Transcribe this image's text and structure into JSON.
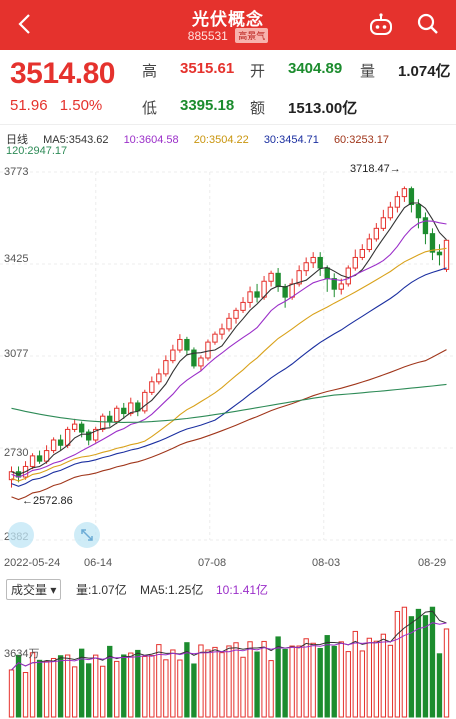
{
  "header": {
    "title": "光伏概念",
    "code": "885531",
    "badge": "高景气",
    "bg_color": "#e5322d"
  },
  "quote": {
    "price": "3514.80",
    "change": "51.96",
    "change_pct": "1.50%",
    "high_label": "高",
    "high": "3515.61",
    "open_label": "开",
    "open": "3404.89",
    "vol_label": "量",
    "vol": "1.074亿",
    "low_label": "低",
    "low": "3395.18",
    "amt_label": "额",
    "amount": "1513.00亿"
  },
  "ma": {
    "period_label": "日线",
    "ma5": "MA5:3543.62",
    "ma10": "10:3604.58",
    "ma20": "20:3504.22",
    "ma30": "30:3454.71",
    "ma60": "60:3253.17",
    "ma120": "120:2947.17",
    "colors": {
      "ma5": "#333333",
      "ma10": "#9b2fc9",
      "ma20": "#d9a21b",
      "ma30": "#1b2fa0",
      "ma60": "#a0361b",
      "ma120": "#2e8b57"
    }
  },
  "axis": {
    "y1": "3773",
    "y2": "3425",
    "y3": "3077",
    "y4": "2730",
    "y5": "2382",
    "max_annot": "3718.47→",
    "min_annot": "←2572.86"
  },
  "dates": {
    "d1": "2022-05-24",
    "d2": "06-14",
    "d3": "07-08",
    "d4": "08-03",
    "d5": "08-29"
  },
  "volume": {
    "selector": "成交量",
    "qty": "量:1.07亿",
    "ma5": "MA5:1.25亿",
    "ma10": "10:1.41亿",
    "axis_low": "3634万"
  },
  "chart_data": {
    "type": "candlestick",
    "ylim": [
      2382,
      3773
    ],
    "max_high": 3718.47,
    "min_low": 2572.86,
    "last_close": 3514.8,
    "candles": [
      [
        2610,
        2640,
        2580,
        2660
      ],
      [
        2640,
        2620,
        2600,
        2660
      ],
      [
        2620,
        2660,
        2610,
        2680
      ],
      [
        2660,
        2700,
        2650,
        2710
      ],
      [
        2700,
        2680,
        2670,
        2720
      ],
      [
        2680,
        2720,
        2670,
        2740
      ],
      [
        2720,
        2760,
        2710,
        2770
      ],
      [
        2760,
        2740,
        2720,
        2780
      ],
      [
        2740,
        2800,
        2730,
        2810
      ],
      [
        2800,
        2820,
        2790,
        2840
      ],
      [
        2820,
        2790,
        2770,
        2830
      ],
      [
        2790,
        2760,
        2740,
        2800
      ],
      [
        2760,
        2800,
        2750,
        2810
      ],
      [
        2800,
        2850,
        2790,
        2860
      ],
      [
        2850,
        2830,
        2810,
        2870
      ],
      [
        2830,
        2880,
        2820,
        2890
      ],
      [
        2880,
        2860,
        2840,
        2900
      ],
      [
        2860,
        2900,
        2850,
        2920
      ],
      [
        2900,
        2870,
        2850,
        2910
      ],
      [
        2870,
        2940,
        2860,
        2950
      ],
      [
        2940,
        2980,
        2930,
        3000
      ],
      [
        2980,
        3010,
        2970,
        3030
      ],
      [
        3010,
        3060,
        3000,
        3080
      ],
      [
        3060,
        3100,
        3050,
        3120
      ],
      [
        3100,
        3140,
        3090,
        3160
      ],
      [
        3140,
        3100,
        3080,
        3150
      ],
      [
        3100,
        3040,
        3030,
        3110
      ],
      [
        3040,
        3070,
        3020,
        3080
      ],
      [
        3070,
        3130,
        3060,
        3140
      ],
      [
        3130,
        3160,
        3120,
        3170
      ],
      [
        3160,
        3180,
        3140,
        3200
      ],
      [
        3180,
        3220,
        3170,
        3240
      ],
      [
        3220,
        3250,
        3200,
        3260
      ],
      [
        3250,
        3280,
        3240,
        3300
      ],
      [
        3280,
        3320,
        3260,
        3340
      ],
      [
        3320,
        3300,
        3280,
        3350
      ],
      [
        3300,
        3360,
        3290,
        3380
      ],
      [
        3360,
        3390,
        3340,
        3400
      ],
      [
        3390,
        3340,
        3320,
        3410
      ],
      [
        3340,
        3300,
        3260,
        3350
      ],
      [
        3300,
        3350,
        3290,
        3370
      ],
      [
        3350,
        3400,
        3340,
        3420
      ],
      [
        3400,
        3430,
        3380,
        3450
      ],
      [
        3430,
        3450,
        3410,
        3470
      ],
      [
        3450,
        3410,
        3380,
        3470
      ],
      [
        3410,
        3370,
        3320,
        3420
      ],
      [
        3370,
        3330,
        3300,
        3390
      ],
      [
        3330,
        3350,
        3310,
        3370
      ],
      [
        3350,
        3410,
        3340,
        3420
      ],
      [
        3410,
        3450,
        3400,
        3480
      ],
      [
        3450,
        3480,
        3440,
        3500
      ],
      [
        3480,
        3520,
        3470,
        3540
      ],
      [
        3520,
        3560,
        3510,
        3580
      ],
      [
        3560,
        3600,
        3550,
        3630
      ],
      [
        3600,
        3640,
        3590,
        3660
      ],
      [
        3640,
        3680,
        3620,
        3700
      ],
      [
        3680,
        3710,
        3660,
        3718.47
      ],
      [
        3710,
        3650,
        3620,
        3718
      ],
      [
        3650,
        3600,
        3560,
        3670
      ],
      [
        3600,
        3540,
        3500,
        3620
      ],
      [
        3540,
        3470,
        3440,
        3560
      ],
      [
        3470,
        3460,
        3420,
        3500
      ],
      [
        3404.89,
        3514.8,
        3395.18,
        3515.61
      ]
    ],
    "volume_ylim": [
      0,
      2.2
    ]
  }
}
